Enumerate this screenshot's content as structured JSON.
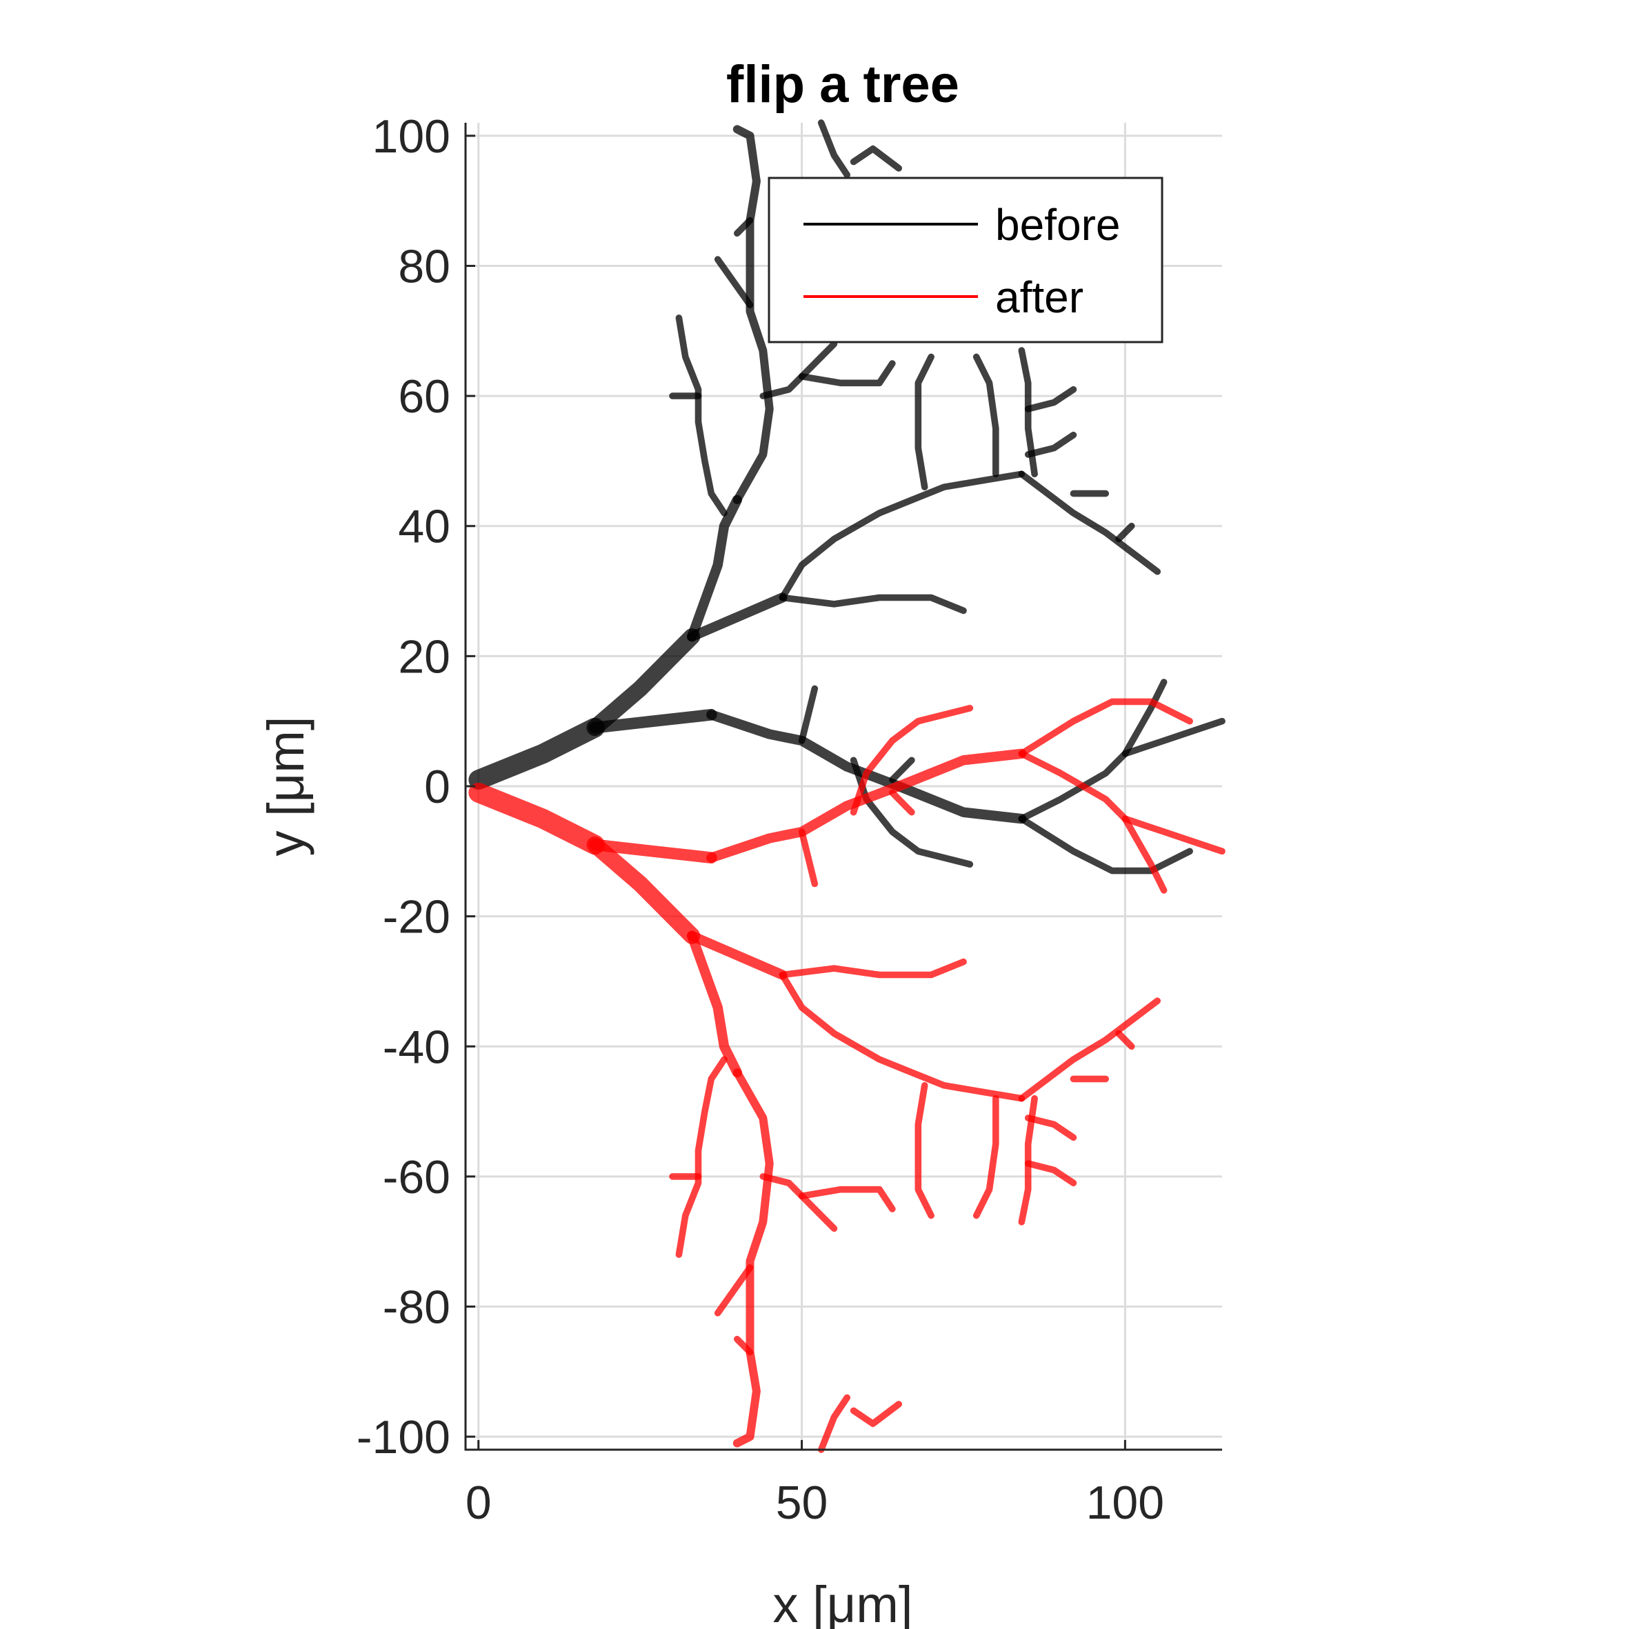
{
  "chart_data": {
    "type": "line",
    "title": "flip a tree",
    "xlabel": "x [μm]",
    "ylabel": "y [μm]",
    "xlim": [
      -2,
      115
    ],
    "ylim": [
      -102,
      102
    ],
    "xticks": [
      0,
      50,
      100
    ],
    "yticks": [
      100,
      80,
      60,
      40,
      20,
      0,
      -20,
      -40,
      -60,
      -80,
      -100
    ],
    "xtick_labels": [
      "0",
      "50",
      "100"
    ],
    "ytick_labels": [
      "100",
      "80",
      "60",
      "40",
      "20",
      "0",
      "-20",
      "-40",
      "-60",
      "-80",
      "-100"
    ],
    "grid": true,
    "legend_position": "top-right",
    "colors": {
      "before": "#000000",
      "after": "#ff0000"
    },
    "series": [
      {
        "name": "before",
        "branches": [
          {
            "w": 12,
            "pts": [
              [
                0,
                1
              ],
              [
                10,
                5
              ],
              [
                18,
                9
              ]
            ]
          },
          {
            "w": 10,
            "pts": [
              [
                18,
                9
              ],
              [
                25,
                15
              ],
              [
                31,
                21
              ],
              [
                33,
                23
              ]
            ]
          },
          {
            "w": 7,
            "pts": [
              [
                18,
                9
              ],
              [
                27,
                10
              ],
              [
                36,
                11
              ]
            ]
          },
          {
            "w": 6,
            "pts": [
              [
                36,
                11
              ],
              [
                45,
                8
              ],
              [
                50,
                7
              ],
              [
                57,
                3
              ],
              [
                65,
                0
              ],
              [
                75,
                -4
              ],
              [
                84,
                -5
              ]
            ]
          },
          {
            "w": 4,
            "pts": [
              [
                84,
                -5
              ],
              [
                92,
                -10
              ],
              [
                98,
                -13
              ],
              [
                104,
                -13
              ],
              [
                110,
                -10
              ]
            ]
          },
          {
            "w": 4,
            "pts": [
              [
                84,
                -5
              ],
              [
                90,
                -2
              ],
              [
                97,
                2
              ],
              [
                100,
                5
              ],
              [
                104,
                12
              ],
              [
                106,
                16
              ]
            ]
          },
          {
            "w": 4,
            "pts": [
              [
                100,
                5
              ],
              [
                106,
                7
              ],
              [
                112,
                9
              ],
              [
                115,
                10
              ]
            ]
          },
          {
            "w": 4,
            "pts": [
              [
                50,
                7
              ],
              [
                52,
                15
              ]
            ]
          },
          {
            "w": 4,
            "pts": [
              [
                58,
                4
              ],
              [
                60,
                -2
              ],
              [
                64,
                -7
              ],
              [
                68,
                -10
              ],
              [
                76,
                -12
              ]
            ]
          },
          {
            "w": 4,
            "pts": [
              [
                64,
                1
              ],
              [
                67,
                4
              ]
            ]
          },
          {
            "w": 6,
            "pts": [
              [
                33,
                23
              ],
              [
                40,
                26
              ],
              [
                47,
                29
              ]
            ]
          },
          {
            "w": 4,
            "pts": [
              [
                47,
                29
              ],
              [
                55,
                28
              ],
              [
                62,
                29
              ],
              [
                70,
                29
              ],
              [
                75,
                27
              ]
            ]
          },
          {
            "w": 4,
            "pts": [
              [
                47,
                29
              ],
              [
                50,
                34
              ],
              [
                55,
                38
              ],
              [
                62,
                42
              ],
              [
                67,
                44
              ],
              [
                72,
                46
              ],
              [
                78,
                47
              ],
              [
                84,
                48
              ]
            ]
          },
          {
            "w": 4,
            "pts": [
              [
                84,
                48
              ],
              [
                88,
                45
              ],
              [
                92,
                42
              ],
              [
                97,
                39
              ],
              [
                101,
                36
              ],
              [
                105,
                33
              ]
            ]
          },
          {
            "w": 4,
            "pts": [
              [
                92,
                45
              ],
              [
                97,
                45
              ]
            ]
          },
          {
            "w": 4,
            "pts": [
              [
                99,
                38
              ],
              [
                101,
                40
              ]
            ]
          },
          {
            "w": 4,
            "pts": [
              [
                86,
                48
              ],
              [
                85,
                55
              ],
              [
                85,
                62
              ],
              [
                84,
                67
              ]
            ]
          },
          {
            "w": 4,
            "pts": [
              [
                85,
                51
              ],
              [
                89,
                52
              ],
              [
                92,
                54
              ]
            ]
          },
          {
            "w": 4,
            "pts": [
              [
                85,
                58
              ],
              [
                89,
                59
              ],
              [
                92,
                61
              ]
            ]
          },
          {
            "w": 4,
            "pts": [
              [
                80,
                48
              ],
              [
                80,
                55
              ],
              [
                79,
                62
              ],
              [
                77,
                66
              ]
            ]
          },
          {
            "w": 4,
            "pts": [
              [
                69,
                46
              ],
              [
                68,
                52
              ],
              [
                68,
                58
              ],
              [
                68,
                62
              ],
              [
                70,
                66
              ]
            ]
          },
          {
            "w": 6,
            "pts": [
              [
                33,
                23
              ],
              [
                37,
                34
              ],
              [
                38,
                40
              ],
              [
                40,
                44
              ]
            ]
          },
          {
            "w": 5,
            "pts": [
              [
                40,
                44
              ],
              [
                44,
                51
              ],
              [
                45,
                58
              ],
              [
                44,
                67
              ],
              [
                42,
                73
              ],
              [
                42,
                80
              ],
              [
                42,
                87
              ],
              [
                43,
                93
              ],
              [
                42,
                100
              ],
              [
                40,
                101
              ]
            ]
          },
          {
            "w": 4,
            "pts": [
              [
                38,
                42
              ],
              [
                36,
                45
              ],
              [
                35,
                50
              ],
              [
                34,
                56
              ],
              [
                34,
                61
              ],
              [
                32,
                66
              ],
              [
                31,
                72
              ]
            ]
          },
          {
            "w": 4,
            "pts": [
              [
                34,
                60
              ],
              [
                30,
                60
              ]
            ]
          },
          {
            "w": 4,
            "pts": [
              [
                44,
                60
              ],
              [
                48,
                61
              ],
              [
                52,
                65
              ],
              [
                55,
                68
              ]
            ]
          },
          {
            "w": 4,
            "pts": [
              [
                50,
                63
              ],
              [
                56,
                62
              ],
              [
                62,
                62
              ],
              [
                64,
                65
              ]
            ]
          },
          {
            "w": 4,
            "pts": [
              [
                42,
                74
              ],
              [
                37,
                81
              ]
            ]
          },
          {
            "w": 4,
            "pts": [
              [
                42,
                87
              ],
              [
                40,
                85
              ]
            ]
          },
          {
            "w": 4,
            "pts": [
              [
                53,
                102
              ],
              [
                55,
                97
              ],
              [
                57,
                94
              ]
            ]
          },
          {
            "w": 4,
            "pts": [
              [
                58,
                96
              ],
              [
                61,
                98
              ],
              [
                65,
                95
              ]
            ]
          }
        ]
      },
      {
        "name": "after",
        "mirror_of": "before"
      }
    ]
  }
}
